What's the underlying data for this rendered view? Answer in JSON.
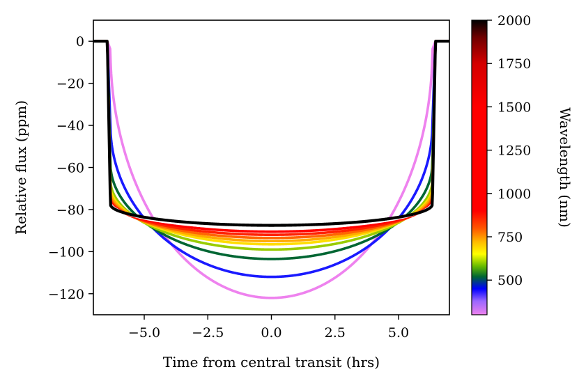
{
  "chart_data": {
    "type": "line",
    "title": "",
    "xlabel": "Time from central transit (hrs)",
    "ylabel": "Relative flux (ppm)",
    "xlim": [
      -7.0,
      7.0
    ],
    "ylim": [
      -130,
      10
    ],
    "xticks": [
      -5.0,
      -2.5,
      0.0,
      2.5,
      5.0
    ],
    "xtick_labels": [
      "−5.0",
      "−2.5",
      "0.0",
      "2.5",
      "5.0"
    ],
    "yticks": [
      0,
      -20,
      -40,
      -60,
      -80,
      -100,
      -120
    ],
    "ytick_labels": [
      "0",
      "−20",
      "−40",
      "−60",
      "−80",
      "−100",
      "−120"
    ],
    "transit": {
      "ingress_egress_hrs": 6.45,
      "ingress_duration_hrs": 0.12,
      "baseline": 0
    },
    "series": [
      {
        "name": "300 nm",
        "wavelength_nm": 300,
        "color": "#ee82ee",
        "center_depth": -122,
        "ingress_depth": -4
      },
      {
        "name": "450 nm",
        "wavelength_nm": 450,
        "color": "#1a1aff",
        "center_depth": -112,
        "ingress_depth": -40
      },
      {
        "name": "550 nm",
        "wavelength_nm": 550,
        "color": "#006633",
        "center_depth": -103.5,
        "ingress_depth": -58
      },
      {
        "name": "650 nm",
        "wavelength_nm": 650,
        "color": "#99cc00",
        "center_depth": -99,
        "ingress_depth": -66
      },
      {
        "name": "700 nm",
        "wavelength_nm": 700,
        "color": "#ffdd00",
        "center_depth": -96.5,
        "ingress_depth": -69
      },
      {
        "name": "750 nm",
        "wavelength_nm": 750,
        "color": "#ffaa00",
        "center_depth": -95,
        "ingress_depth": -71
      },
      {
        "name": "800 nm",
        "wavelength_nm": 800,
        "color": "#ff6600",
        "center_depth": -93.5,
        "ingress_depth": -73
      },
      {
        "name": "900 nm",
        "wavelength_nm": 900,
        "color": "#ff2200",
        "center_depth": -92,
        "ingress_depth": -74.5
      },
      {
        "name": "1200 nm",
        "wavelength_nm": 1200,
        "color": "#ff0000",
        "center_depth": -90.5,
        "ingress_depth": -75.5
      },
      {
        "name": "1600 nm",
        "wavelength_nm": 1600,
        "color": "#ffffff",
        "center_depth": -89,
        "ingress_depth": -76.5
      },
      {
        "name": "2000 nm",
        "wavelength_nm": 2000,
        "color": "#000000",
        "center_depth": -87.5,
        "ingress_depth": -77.5
      }
    ],
    "colorbar": {
      "label": "Wavelength (nm)",
      "range": [
        300,
        2000
      ],
      "ticks": [
        500,
        750,
        1000,
        1250,
        1500,
        1750,
        2000
      ],
      "tick_labels": [
        "500",
        "750",
        "1000",
        "1250",
        "1500",
        "1750",
        "2000"
      ],
      "stops": [
        {
          "value": 300,
          "color": "#ee82ee"
        },
        {
          "value": 380,
          "color": "#9966ff"
        },
        {
          "value": 450,
          "color": "#0000ff"
        },
        {
          "value": 520,
          "color": "#006633"
        },
        {
          "value": 580,
          "color": "#66bb00"
        },
        {
          "value": 650,
          "color": "#ffff00"
        },
        {
          "value": 720,
          "color": "#ffbb00"
        },
        {
          "value": 800,
          "color": "#ff5500"
        },
        {
          "value": 900,
          "color": "#ff0000"
        },
        {
          "value": 1500,
          "color": "#ff0000"
        },
        {
          "value": 1750,
          "color": "#d40000"
        },
        {
          "value": 1900,
          "color": "#700000"
        },
        {
          "value": 2000,
          "color": "#000000"
        }
      ]
    }
  }
}
